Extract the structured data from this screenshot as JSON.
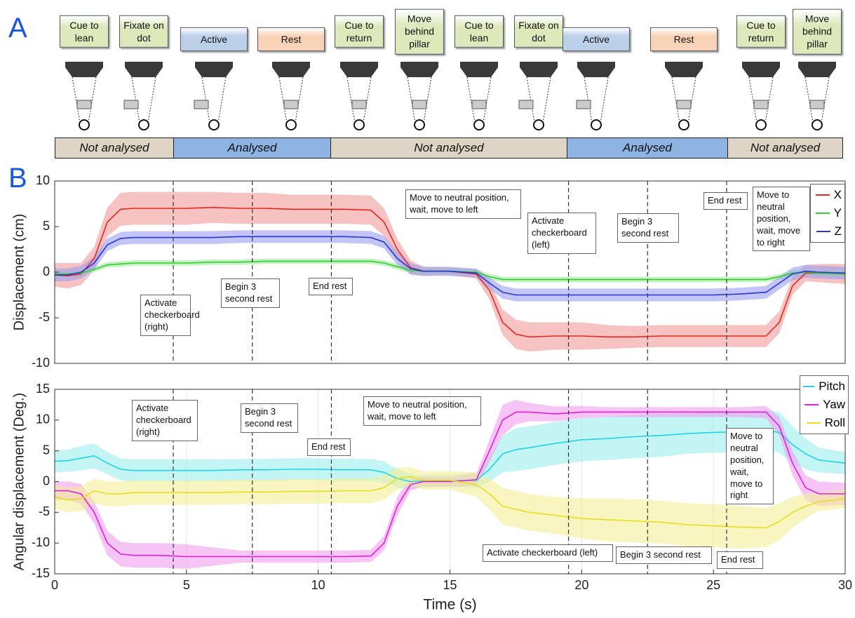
{
  "panel_labels": {
    "a": "A",
    "b": "B"
  },
  "panel_a": {
    "steps": [
      {
        "text": "Cue to lean",
        "color": "#dde8bb"
      },
      {
        "text": "Fixate on dot",
        "color": "#dde8bb"
      },
      {
        "text": "Active",
        "color": "#bcd0ea"
      },
      {
        "text": "Rest",
        "color": "#f9d3b6"
      },
      {
        "text": "Cue to return",
        "color": "#dde8bb"
      },
      {
        "text": "Move behind pillar",
        "color": "#dde8bb"
      },
      {
        "text": "Cue to lean",
        "color": "#dde8bb"
      },
      {
        "text": "Fixate on dot",
        "color": "#dde8bb"
      },
      {
        "text": "Active",
        "color": "#bcd0ea"
      },
      {
        "text": "Rest",
        "color": "#f9d3b6"
      },
      {
        "text": "Cue to return",
        "color": "#dde8bb"
      },
      {
        "text": "Move behind pillar",
        "color": "#dde8bb"
      }
    ],
    "phases": [
      {
        "label": "Not analysed",
        "color": "#ddd4c3"
      },
      {
        "label": "Analysed",
        "color": "#8db3e2"
      },
      {
        "label": "Not analysed",
        "color": "#ddd4c3"
      },
      {
        "label": "Analysed",
        "color": "#8db3e2"
      },
      {
        "label": "Not analysed",
        "color": "#ddd4c3"
      }
    ]
  },
  "chart_data": [
    {
      "type": "line",
      "ylabel": "Displacement (cm)",
      "xlim": [
        0,
        30
      ],
      "ylim": [
        -10,
        10
      ],
      "yticks": [
        -10,
        -5,
        0,
        5,
        10
      ],
      "legend": "upper right",
      "vlines": [
        4.5,
        7.5,
        10.5,
        19.5,
        22.5,
        25.5
      ],
      "x": [
        0,
        0.5,
        1,
        1.5,
        2,
        2.5,
        3,
        4,
        5,
        6,
        7,
        8,
        9,
        10,
        11,
        12,
        12.5,
        13,
        13.5,
        14,
        15,
        16,
        16.5,
        17,
        17.5,
        18,
        19,
        20,
        21,
        22,
        23,
        24,
        25,
        26,
        27,
        27.5,
        28,
        28.5,
        29,
        30
      ],
      "series": [
        {
          "name": "X",
          "color": "#e8261d",
          "band_color": "#f29a9a",
          "values": [
            -0.3,
            -0.4,
            -0.2,
            1.5,
            5.5,
            6.9,
            7,
            7,
            7,
            7.1,
            7,
            7,
            6.9,
            6.9,
            6.9,
            6.8,
            5.5,
            2.5,
            0.5,
            0.1,
            0.1,
            -0.2,
            -2,
            -5.5,
            -6.8,
            -7.1,
            -7,
            -7,
            -7.1,
            -7.1,
            -7,
            -7,
            -7,
            -7,
            -7,
            -5.5,
            -1.5,
            -0.1,
            -0.1,
            -0.2
          ],
          "band": [
            1.3,
            1.4,
            1.2,
            1.3,
            1.6,
            1.8,
            1.8,
            1.8,
            1.8,
            1.7,
            1.7,
            1.7,
            1.6,
            1.6,
            1.6,
            1.6,
            1.5,
            1.2,
            0.8,
            0.5,
            0.4,
            0.5,
            1,
            1.4,
            1.6,
            1.6,
            1.5,
            1.5,
            1.3,
            1.2,
            1.2,
            1.2,
            1.2,
            1.2,
            1.2,
            1.2,
            1,
            0.9,
            1,
            1.1
          ]
        },
        {
          "name": "Y",
          "color": "#2fcf2f",
          "band_color": "#9fe89f",
          "values": [
            -0.2,
            -0.2,
            -0.1,
            0.3,
            0.8,
            0.9,
            1,
            1,
            1,
            1.1,
            1.1,
            1.2,
            1.2,
            1.2,
            1.2,
            1.2,
            1,
            0.6,
            0.2,
            0.1,
            0.1,
            0,
            -0.5,
            -0.8,
            -0.8,
            -0.8,
            -0.8,
            -0.8,
            -0.8,
            -0.8,
            -0.8,
            -0.8,
            -0.8,
            -0.8,
            -0.8,
            -0.5,
            -0.1,
            0,
            -0.1,
            -0.2
          ],
          "band": [
            0.3,
            0.3,
            0.3,
            0.3,
            0.3,
            0.3,
            0.3,
            0.3,
            0.3,
            0.3,
            0.3,
            0.3,
            0.3,
            0.3,
            0.3,
            0.3,
            0.3,
            0.3,
            0.3,
            0.3,
            0.3,
            0.3,
            0.3,
            0.3,
            0.3,
            0.3,
            0.3,
            0.3,
            0.3,
            0.3,
            0.3,
            0.3,
            0.3,
            0.3,
            0.3,
            0.3,
            0.3,
            0.3,
            0.3,
            0.3
          ]
        },
        {
          "name": "Z",
          "color": "#2a34d4",
          "band_color": "#9a9ff0",
          "values": [
            -0.3,
            -0.3,
            0,
            1,
            3,
            3.7,
            3.8,
            3.8,
            3.8,
            3.8,
            3.9,
            3.9,
            3.9,
            3.9,
            3.9,
            3.8,
            3.3,
            1.5,
            0.4,
            0.1,
            0.1,
            -0.1,
            -1.2,
            -2.2,
            -2.5,
            -2.5,
            -2.5,
            -2.5,
            -2.5,
            -2.5,
            -2.5,
            -2.5,
            -2.5,
            -2.4,
            -2.2,
            -1.2,
            -0.2,
            0.1,
            0,
            -0.1
          ],
          "band": [
            0.7,
            0.7,
            0.7,
            0.7,
            0.7,
            0.7,
            0.7,
            0.7,
            0.7,
            0.7,
            0.7,
            0.7,
            0.7,
            0.7,
            0.7,
            0.7,
            0.7,
            0.7,
            0.6,
            0.5,
            0.5,
            0.5,
            0.6,
            0.7,
            0.7,
            0.7,
            0.7,
            0.7,
            0.7,
            0.7,
            0.7,
            0.7,
            0.7,
            0.7,
            0.7,
            0.7,
            0.7,
            0.7,
            0.7,
            0.7
          ]
        }
      ],
      "annotations": [
        "Activate checkerboard (right)",
        "Begin 3 second rest",
        "End rest",
        "Move to neutral position, wait, move to left",
        "Activate checkerboard (left)",
        "Begin 3 second rest",
        "End rest",
        "Move to neutral position, wait, move to right"
      ]
    },
    {
      "type": "line",
      "ylabel": "Angular displacement (Deg.)",
      "xlabel": "Time (s)",
      "xlim": [
        0,
        30
      ],
      "xticks": [
        0,
        5,
        10,
        15,
        20,
        25,
        30
      ],
      "ylim": [
        -15,
        15
      ],
      "yticks": [
        -15,
        -10,
        -5,
        0,
        5,
        10,
        15
      ],
      "legend": "upper right",
      "vlines": [
        4.5,
        7.5,
        10.5,
        19.5,
        22.5,
        25.5
      ],
      "x": [
        0,
        0.5,
        1,
        1.5,
        2,
        2.5,
        3,
        4,
        5,
        6,
        7,
        8,
        9,
        10,
        11,
        12,
        12.5,
        13,
        13.5,
        14,
        15,
        16,
        16.5,
        17,
        17.5,
        18,
        19,
        20,
        21,
        22,
        23,
        24,
        25,
        26,
        27,
        27.5,
        28,
        28.5,
        29,
        30
      ],
      "series": [
        {
          "name": "Pitch",
          "color": "#1fd4e0",
          "band_color": "#9defef",
          "values": [
            3.3,
            3.4,
            3.8,
            4.2,
            3,
            2,
            1.8,
            1.8,
            1.8,
            1.8,
            1.9,
            1.9,
            2,
            2,
            1.9,
            1.9,
            1.5,
            0.5,
            0,
            0.1,
            0.1,
            0.2,
            2,
            4.5,
            5.2,
            5.5,
            6.2,
            6.8,
            7,
            7.3,
            7.5,
            7.8,
            8,
            8.1,
            8.3,
            8,
            6,
            4.5,
            3.5,
            3
          ],
          "band": [
            1.8,
            1.8,
            2,
            2,
            1.8,
            1.8,
            1.8,
            1.8,
            1.8,
            1.8,
            1.8,
            1.8,
            1.8,
            1.8,
            1.8,
            1.8,
            1.8,
            1.5,
            1.2,
            1,
            1,
            1.2,
            2,
            3,
            3.5,
            3.5,
            3.5,
            3.5,
            3.5,
            3.5,
            3.5,
            3.3,
            3.3,
            3.3,
            3.3,
            3.3,
            3,
            2.5,
            2,
            1.8
          ]
        },
        {
          "name": "Yaw",
          "color": "#e020d8",
          "band_color": "#f09cee",
          "values": [
            -1.5,
            -1.5,
            -2,
            -5,
            -10,
            -11.8,
            -12,
            -12,
            -12.2,
            -12.2,
            -12.2,
            -12.2,
            -12.2,
            -12.2,
            -12.2,
            -12.1,
            -10,
            -4,
            -0.5,
            0,
            0,
            0.3,
            5,
            10,
            11.3,
            11.3,
            11,
            11.3,
            11.3,
            11.3,
            11.3,
            11.3,
            11.3,
            11.3,
            11.3,
            9,
            3,
            -1,
            -2,
            -2
          ],
          "band": [
            1.5,
            1.5,
            1.6,
            1.8,
            2,
            2,
            2,
            2,
            2,
            1.5,
            1,
            1,
            1,
            1,
            1,
            1,
            1.2,
            1.5,
            1,
            0.8,
            0.8,
            1,
            1.8,
            2.5,
            2,
            1.5,
            1.2,
            1,
            0.8,
            0.8,
            0.8,
            0.8,
            0.8,
            0.8,
            1,
            1.5,
            2,
            2,
            2,
            1.8
          ]
        },
        {
          "name": "Roll",
          "color": "#e6de1c",
          "band_color": "#f3ef96",
          "values": [
            -2.5,
            -3,
            -2.8,
            -1.5,
            -2,
            -2,
            -1.8,
            -1.8,
            -1.8,
            -1.8,
            -1.7,
            -1.7,
            -1.6,
            -1.6,
            -1.5,
            -1.5,
            -1,
            0.5,
            0.8,
            0.2,
            0.2,
            -0.5,
            -2,
            -4,
            -4.5,
            -5,
            -5.5,
            -6,
            -6.2,
            -6.4,
            -6.6,
            -7,
            -7.2,
            -7.4,
            -7.5,
            -6.5,
            -5,
            -4,
            -3.3,
            -2.8
          ],
          "band": [
            2,
            2,
            2,
            2,
            2,
            2,
            2,
            2,
            2,
            2,
            2,
            2,
            2,
            2,
            2,
            2,
            2,
            1.8,
            1.5,
            1.5,
            1.5,
            2,
            2.5,
            3,
            3,
            3,
            3,
            3.3,
            3.5,
            3.5,
            3.5,
            3.5,
            3.5,
            3.5,
            3.2,
            3,
            2.5,
            2,
            1.5,
            1.5
          ]
        }
      ],
      "annotations": [
        "Activate checkerboard (right)",
        "Begin 3 second rest",
        "End rest",
        "Move to neutral position, wait, move to left",
        "Activate checkerboard (left)",
        "Begin 3 second rest",
        "End rest",
        "Move to neutral position, wait, move to right"
      ]
    }
  ]
}
